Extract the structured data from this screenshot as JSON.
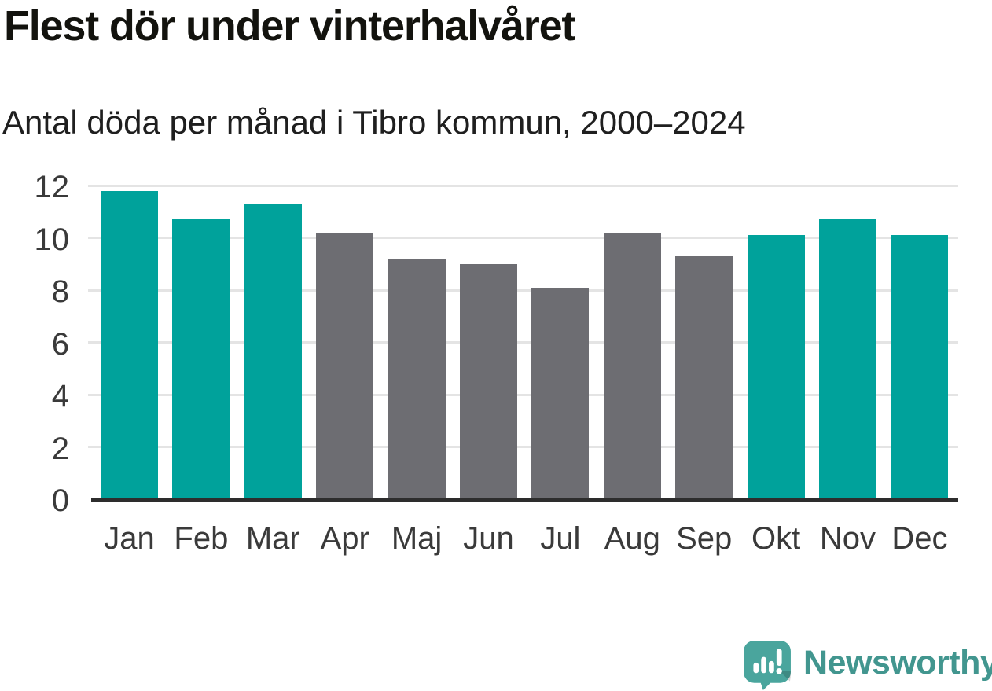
{
  "chart_data": {
    "type": "bar",
    "title": "Flest dör under vinterhalvåret",
    "subtitle": "Antal döda per månad i Tibro kommun, 2000–2024",
    "categories": [
      "Jan",
      "Feb",
      "Mar",
      "Apr",
      "Maj",
      "Jun",
      "Jul",
      "Aug",
      "Sep",
      "Okt",
      "Nov",
      "Dec"
    ],
    "values": [
      11.8,
      10.7,
      11.3,
      10.2,
      9.2,
      9.0,
      8.1,
      10.2,
      9.3,
      10.1,
      10.7,
      10.1
    ],
    "bar_colors": [
      "#00a29b",
      "#00a29b",
      "#00a29b",
      "#6d6d72",
      "#6d6d72",
      "#6d6d72",
      "#6d6d72",
      "#6d6d72",
      "#6d6d72",
      "#00a29b",
      "#00a29b",
      "#00a29b"
    ],
    "palette": {
      "winter_teal": "#00a29b",
      "other_gray": "#6d6d72",
      "gridline": "#e4e4e4",
      "axis_line": "#2d2d2d",
      "axis_text": "#3a3a3a"
    },
    "xlabel": "",
    "ylabel": "",
    "ylim": [
      0,
      12
    ],
    "yticks": [
      0,
      2,
      4,
      6,
      8,
      10,
      12
    ],
    "grid": true,
    "legend": "none"
  },
  "branding": {
    "wordmark": "Newsworthy",
    "wordmark_color": "#42968f",
    "icon": "newsworthy-speech-bubble-bar-chart-icon",
    "icon_color": "#4aa59d"
  }
}
